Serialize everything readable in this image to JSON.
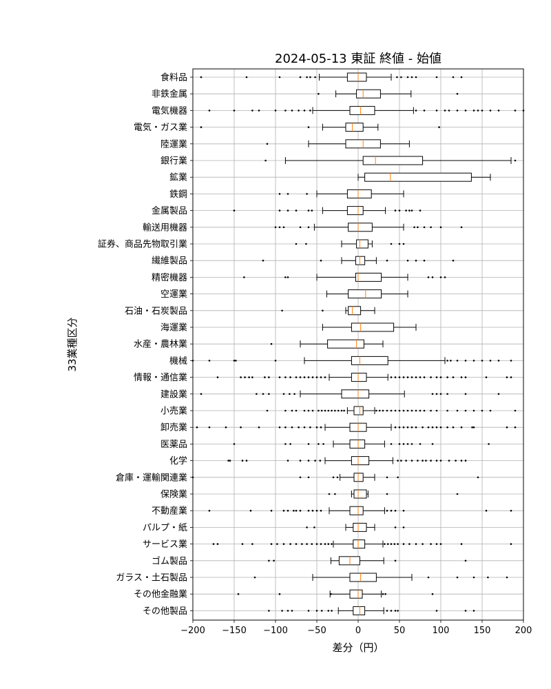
{
  "chart_data": {
    "type": "boxplot",
    "title": "2024-05-13 東証 終値 - 始値",
    "xlabel": "差分（円）",
    "ylabel": "33業種区分",
    "xlim": [
      -200,
      200
    ],
    "xticks": [
      -200,
      -150,
      -100,
      -50,
      0,
      50,
      100,
      150,
      200
    ],
    "xtick_labels": [
      "−200",
      "−150",
      "−100",
      "−50",
      "0",
      "50",
      "100",
      "150",
      "200"
    ],
    "grid": true,
    "colors": {
      "box": "#000000",
      "median": "#ff7f0e",
      "grid": "#b0b0b0"
    },
    "categories": [
      {
        "name": "食料品",
        "q1": -13,
        "median": 0,
        "q3": 10,
        "whisker_low": -47,
        "whisker_high": 40,
        "outliers": [
          -190,
          -135,
          -95,
          -70,
          -62,
          -58,
          -52,
          47,
          52,
          60,
          65,
          70,
          95,
          115,
          125
        ]
      },
      {
        "name": "非鉄金属",
        "q1": -2,
        "median": 6,
        "q3": 27,
        "whisker_low": -27,
        "whisker_high": 64,
        "outliers": [
          -48,
          120
        ]
      },
      {
        "name": "電気機器",
        "q1": -10,
        "median": 3,
        "q3": 20,
        "whisker_low": -55,
        "whisker_high": 67,
        "outliers": [
          -180,
          -150,
          -128,
          -120,
          -100,
          -88,
          -80,
          -72,
          -65,
          -58,
          70,
          80,
          95,
          105,
          110,
          120,
          130,
          140,
          145,
          150,
          160,
          170,
          190,
          200
        ]
      },
      {
        "name": "電気・ガス業",
        "q1": -15,
        "median": -7,
        "q3": 6,
        "whisker_low": -43,
        "whisker_high": 24,
        "outliers": [
          -190,
          -60,
          98
        ]
      },
      {
        "name": "陸運業",
        "q1": -15,
        "median": 6,
        "q3": 27,
        "whisker_low": -60,
        "whisker_high": 62,
        "outliers": [
          -110
        ]
      },
      {
        "name": "銀行業",
        "q1": 6,
        "median": 21,
        "q3": 78,
        "whisker_low": -88,
        "whisker_high": 185,
        "outliers": [
          -112,
          190
        ]
      },
      {
        "name": "鉱業",
        "q1": 8,
        "median": 39,
        "q3": 137,
        "whisker_low": 0,
        "whisker_high": 160,
        "outliers": []
      },
      {
        "name": "鉄鋼",
        "q1": -13,
        "median": 0,
        "q3": 16,
        "whisker_low": -50,
        "whisker_high": 55,
        "outliers": [
          -95,
          -85,
          -62
        ]
      },
      {
        "name": "金属製品",
        "q1": -13,
        "median": 0,
        "q3": 6,
        "whisker_low": -43,
        "whisker_high": 33,
        "outliers": [
          -150,
          -95,
          -85,
          -75,
          -60,
          -56,
          45,
          50,
          58,
          62,
          65,
          75
        ]
      },
      {
        "name": "輸送用機器",
        "q1": -12,
        "median": 0,
        "q3": 17,
        "whisker_low": -53,
        "whisker_high": 55,
        "outliers": [
          -100,
          -95,
          -90,
          -70,
          -60,
          68,
          72,
          80,
          88,
          100,
          125
        ]
      },
      {
        "name": "証券、商品先物取引業",
        "q1": -2,
        "median": 2,
        "q3": 12,
        "whisker_low": -20,
        "whisker_high": 17,
        "outliers": [
          -75,
          -63,
          40,
          50,
          55
        ]
      },
      {
        "name": "繊維製品",
        "q1": -3,
        "median": 2,
        "q3": 8,
        "whisker_low": -20,
        "whisker_high": 22,
        "outliers": [
          -115,
          -45,
          35,
          60,
          70,
          80,
          115
        ]
      },
      {
        "name": "精密機器",
        "q1": -3,
        "median": 0,
        "q3": 28,
        "whisker_low": -50,
        "whisker_high": 60,
        "outliers": [
          -138,
          -88,
          -85,
          85,
          90,
          100,
          105
        ]
      },
      {
        "name": "空運業",
        "q1": -12,
        "median": 9,
        "q3": 28,
        "whisker_low": -38,
        "whisker_high": 60,
        "outliers": []
      },
      {
        "name": "石油・石炭製品",
        "q1": -12,
        "median": -7,
        "q3": 3,
        "whisker_low": -15,
        "whisker_high": 20,
        "outliers": [
          -92,
          -43
        ]
      },
      {
        "name": "海運業",
        "q1": -8,
        "median": 3,
        "q3": 43,
        "whisker_low": -43,
        "whisker_high": 70,
        "outliers": []
      },
      {
        "name": "水産・農林業",
        "q1": -37,
        "median": -2,
        "q3": 7,
        "whisker_low": -70,
        "whisker_high": 30,
        "outliers": [
          -105
        ]
      },
      {
        "name": "機械",
        "q1": -8,
        "median": 2,
        "q3": 36,
        "whisker_low": -65,
        "whisker_high": 105,
        "outliers": [
          -200,
          -180,
          -150,
          -148,
          -100,
          108,
          112,
          120,
          130,
          140,
          150,
          160,
          170,
          185
        ]
      },
      {
        "name": "情報・通信業",
        "q1": -8,
        "median": 0,
        "q3": 10,
        "whisker_low": -35,
        "whisker_high": 36,
        "outliers": [
          -170,
          -142,
          -137,
          -132,
          -128,
          -113,
          -108,
          -95,
          -88,
          -82,
          -75,
          -70,
          -65,
          -60,
          -55,
          -50,
          -45,
          -40,
          40,
          45,
          50,
          55,
          60,
          65,
          70,
          75,
          80,
          88,
          95,
          100,
          108,
          115,
          125,
          130,
          155,
          180,
          185
        ]
      },
      {
        "name": "建設業",
        "q1": -20,
        "median": 0,
        "q3": 13,
        "whisker_low": -70,
        "whisker_high": 56,
        "outliers": [
          -190,
          -123,
          -115,
          -108,
          -90,
          -83,
          -77,
          90,
          95,
          100,
          108,
          130,
          170
        ]
      },
      {
        "name": "小売業",
        "q1": -5,
        "median": 2,
        "q3": 6,
        "whisker_low": -13,
        "whisker_high": 20,
        "outliers": [
          -110,
          -88,
          -80,
          -75,
          -65,
          -60,
          -55,
          -48,
          -44,
          -40,
          -36,
          -32,
          -28,
          -24,
          -20,
          -17,
          22,
          26,
          30,
          35,
          40,
          45,
          50,
          55,
          60,
          65,
          70,
          75,
          80,
          88,
          95,
          108,
          120,
          130,
          140,
          150,
          160,
          190
        ]
      },
      {
        "name": "卸売業",
        "q1": -10,
        "median": 0,
        "q3": 10,
        "whisker_low": -40,
        "whisker_high": 40,
        "outliers": [
          -195,
          -180,
          -160,
          -142,
          -120,
          -95,
          -88,
          -80,
          -72,
          -65,
          -58,
          -50,
          -45,
          45,
          50,
          55,
          60,
          65,
          70,
          78,
          85,
          90,
          95,
          100,
          108,
          115,
          125,
          138,
          140,
          180,
          190
        ]
      },
      {
        "name": "医薬品",
        "q1": -10,
        "median": 0,
        "q3": 8,
        "whisker_low": -30,
        "whisker_high": 32,
        "outliers": [
          -150,
          -88,
          -82,
          -60,
          -48,
          -42,
          40,
          50,
          55,
          60,
          65,
          75,
          90,
          158
        ]
      },
      {
        "name": "化学",
        "q1": -8,
        "median": 0,
        "q3": 13,
        "whisker_low": -40,
        "whisker_high": 42,
        "outliers": [
          -157,
          -155,
          -140,
          -135,
          -85,
          -70,
          -60,
          -52,
          -46,
          48,
          52,
          58,
          65,
          72,
          78,
          82,
          88,
          95,
          100,
          110,
          118,
          125,
          130
        ]
      },
      {
        "name": "倉庫・運輸関連業",
        "q1": -5,
        "median": 0,
        "q3": 6,
        "whisker_low": -22,
        "whisker_high": 20,
        "outliers": [
          -200,
          -70,
          -60,
          -30,
          -25,
          35,
          48,
          145
        ]
      },
      {
        "name": "保険業",
        "q1": -5,
        "median": 0,
        "q3": 10,
        "whisker_low": -8,
        "whisker_high": 12,
        "outliers": [
          -35,
          -28,
          35,
          120
        ]
      },
      {
        "name": "不動産業",
        "q1": -10,
        "median": 0,
        "q3": 6,
        "whisker_low": -35,
        "whisker_high": 32,
        "outliers": [
          -180,
          -130,
          -105,
          -90,
          -85,
          -78,
          -75,
          -70,
          -60,
          -55,
          -50,
          -45,
          35,
          40,
          45,
          55,
          155,
          185
        ]
      },
      {
        "name": "パルプ・紙",
        "q1": -6,
        "median": 0,
        "q3": 10,
        "whisker_low": -15,
        "whisker_high": 20,
        "outliers": [
          -62,
          -53,
          45,
          55
        ]
      },
      {
        "name": "サービス業",
        "q1": -6,
        "median": 0,
        "q3": 8,
        "whisker_low": -30,
        "whisker_high": 30,
        "outliers": [
          -175,
          -170,
          -140,
          -128,
          -105,
          -98,
          -90,
          -82,
          -75,
          -68,
          -62,
          -56,
          -50,
          -45,
          -40,
          -36,
          -32,
          32,
          36,
          40,
          44,
          48,
          55,
          62,
          70,
          78,
          88,
          95,
          100,
          125,
          185
        ]
      },
      {
        "name": "ゴム製品",
        "q1": -23,
        "median": -10,
        "q3": 2,
        "whisker_low": -33,
        "whisker_high": 31,
        "outliers": [
          -108,
          -102,
          45,
          130
        ]
      },
      {
        "name": "ガラス・土石製品",
        "q1": -10,
        "median": 3,
        "q3": 22,
        "whisker_low": -55,
        "whisker_high": 65,
        "outliers": [
          -125,
          85,
          120,
          140,
          157,
          180
        ]
      },
      {
        "name": "その他金融業",
        "q1": -10,
        "median": 0,
        "q3": 5,
        "whisker_low": -34,
        "whisker_high": 28,
        "outliers": [
          -145,
          -95,
          -33,
          30,
          33,
          90
        ]
      },
      {
        "name": "その他製品",
        "q1": -6,
        "median": 2,
        "q3": 8,
        "whisker_low": -24,
        "whisker_high": 31,
        "outliers": [
          -108,
          -92,
          -85,
          -80,
          -60,
          -50,
          -44,
          -36,
          -32,
          35,
          40,
          45,
          48,
          95,
          130,
          140
        ]
      }
    ]
  }
}
